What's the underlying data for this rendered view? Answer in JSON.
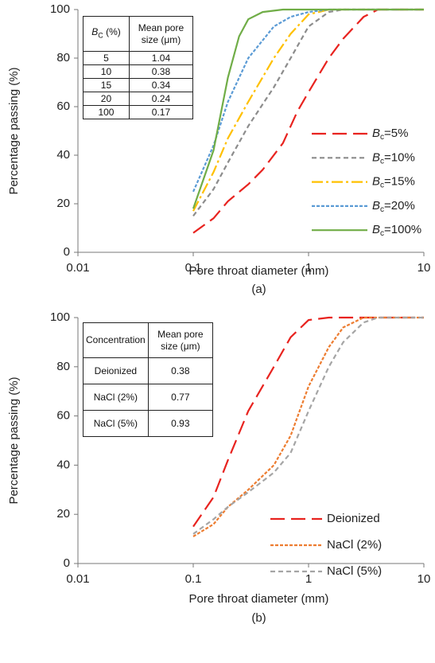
{
  "chart_data": [
    {
      "type": "line",
      "caption": "(a)",
      "xlabel": "Pore throat diameter (mm)",
      "ylabel": "Percentage passing (%)",
      "xscale": "log",
      "xlim": [
        0.01,
        10
      ],
      "xticks": [
        0.01,
        0.1,
        1,
        10
      ],
      "ylim": [
        0,
        100
      ],
      "yticks": [
        0,
        20,
        40,
        60,
        80,
        100
      ],
      "table": {
        "header": [
          "BC (%)",
          "Mean pore size (μm)"
        ],
        "rows": [
          [
            "5",
            "1.04"
          ],
          [
            "10",
            "0.38"
          ],
          [
            "15",
            "0.34"
          ],
          [
            "20",
            "0.24"
          ],
          [
            "100",
            "0.17"
          ]
        ]
      },
      "series": [
        {
          "name": "Bc=5%",
          "color": "#e8231f",
          "dash": "long-dash",
          "x": [
            0.1,
            0.15,
            0.2,
            0.3,
            0.4,
            0.6,
            0.8,
            1.0,
            1.5,
            2,
            3,
            4,
            10
          ],
          "values": [
            8,
            14,
            21,
            28,
            34,
            45,
            58,
            66,
            80,
            88,
            97,
            100,
            100
          ]
        },
        {
          "name": "Bc=10%",
          "color": "#8c8c8c",
          "dash": "dash",
          "x": [
            0.1,
            0.15,
            0.2,
            0.3,
            0.5,
            0.7,
            1.0,
            1.5,
            2,
            10
          ],
          "values": [
            15,
            26,
            37,
            52,
            68,
            80,
            93,
            99,
            100,
            100
          ]
        },
        {
          "name": "Bc=15%",
          "color": "#ffc000",
          "dash": "dash-dot",
          "x": [
            0.1,
            0.15,
            0.2,
            0.3,
            0.5,
            0.7,
            1.0,
            1.5,
            10
          ],
          "values": [
            17,
            33,
            47,
            62,
            80,
            90,
            98,
            100,
            100
          ]
        },
        {
          "name": "Bc=20%",
          "color": "#5b9bd5",
          "dash": "short-dash",
          "x": [
            0.1,
            0.15,
            0.2,
            0.3,
            0.5,
            0.7,
            1.0,
            1.5,
            10
          ],
          "values": [
            25,
            44,
            62,
            80,
            93,
            97,
            99,
            100,
            100
          ]
        },
        {
          "name": "Bc=100%",
          "color": "#70ad47",
          "dash": "solid",
          "x": [
            0.1,
            0.15,
            0.2,
            0.25,
            0.3,
            0.4,
            0.6,
            10
          ],
          "values": [
            18,
            42,
            72,
            89,
            96,
            99,
            100,
            100
          ]
        }
      ]
    },
    {
      "type": "line",
      "caption": "(b)",
      "xlabel": "Pore throat diameter (mm)",
      "ylabel": "Percentage passing (%)",
      "xscale": "log",
      "xlim": [
        0.01,
        10
      ],
      "xticks": [
        0.01,
        0.1,
        1,
        10
      ],
      "ylim": [
        0,
        100
      ],
      "yticks": [
        0,
        20,
        40,
        60,
        80,
        100
      ],
      "table": {
        "header": [
          "Concentration",
          "Mean pore size (μm)"
        ],
        "rows": [
          [
            "Deionized",
            "0.38"
          ],
          [
            "NaCl (2%)",
            "0.77"
          ],
          [
            "NaCl (5%)",
            "0.93"
          ]
        ]
      },
      "series": [
        {
          "name": "Deionized",
          "color": "#e8231f",
          "dash": "long-dash",
          "x": [
            0.1,
            0.15,
            0.2,
            0.3,
            0.5,
            0.7,
            1.0,
            1.5,
            10
          ],
          "values": [
            15,
            27,
            42,
            62,
            80,
            92,
            99,
            100,
            100
          ]
        },
        {
          "name": "NaCl (2%)",
          "color": "#ed7d31",
          "dash": "short-dash",
          "x": [
            0.1,
            0.15,
            0.2,
            0.3,
            0.5,
            0.7,
            1.0,
            1.5,
            2,
            3,
            10
          ],
          "values": [
            11,
            16,
            23,
            30,
            40,
            52,
            72,
            88,
            96,
            100,
            100
          ]
        },
        {
          "name": "NaCl (5%)",
          "color": "#a5a5a5",
          "dash": "dash",
          "x": [
            0.1,
            0.15,
            0.2,
            0.3,
            0.5,
            0.7,
            1.0,
            1.5,
            2,
            3,
            4,
            10
          ],
          "values": [
            12,
            18,
            23,
            29,
            37,
            45,
            62,
            80,
            90,
            98,
            100,
            100
          ]
        }
      ]
    }
  ]
}
